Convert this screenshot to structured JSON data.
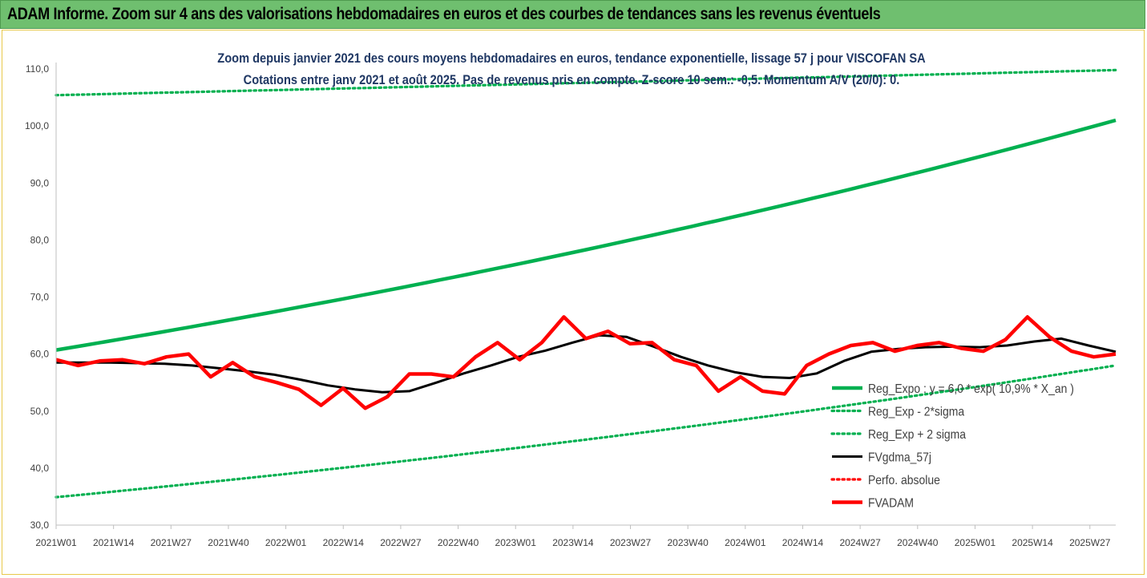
{
  "header": {
    "title": "ADAM Informe. Zoom sur 4 ans des valorisations hebdomadaires en euros et des courbes de tendances sans les revenus éventuels"
  },
  "colors": {
    "header_bg": "#6fbf6f",
    "green": "#00b050",
    "black": "#000000",
    "red": "#ff0000",
    "frame": "#e8c84a"
  },
  "chart_data": {
    "type": "line",
    "title": "Zoom depuis janvier 2021 des cours moyens hebdomadaires en euros, tendance exponentielle, lissage 57 j pour VISCOFAN SA",
    "subtitle": "Cotations entre janv 2021 et août 2025. Pas de revenus pris en compte. Z-score 10 sem.: -0,5. Momentum A/V (20/0): 0.",
    "xlabel": "",
    "ylabel": "",
    "ylim": [
      30,
      110
    ],
    "yticks": [
      "30,0",
      "40,0",
      "50,0",
      "60,0",
      "70,0",
      "80,0",
      "90,0",
      "100,0",
      "110,0"
    ],
    "xticks": [
      "2021W01",
      "2021W14",
      "2021W27",
      "2021W40",
      "2022W01",
      "2022W14",
      "2022W27",
      "2022W40",
      "2023W01",
      "2023W14",
      "2023W27",
      "2023W40",
      "2024W01",
      "2024W14",
      "2024W27",
      "2024W40",
      "2025W01",
      "2025W14",
      "2025W27"
    ],
    "legend_position": "bottom-right",
    "series": [
      {
        "name": "Reg_Expo : y = 6,0 * exp( 10,9% *  X_an )",
        "style": "solid-thick",
        "color": "#00b050",
        "start": 60.7,
        "end": 101.0
      },
      {
        "name": "Reg_Exp - 2*sigma",
        "style": "dotted",
        "color": "#00b050",
        "start": 34.9,
        "end": 58.0
      },
      {
        "name": "Reg_Exp + 2 sigma",
        "style": "dotted",
        "color": "#00b050",
        "start": 105.4,
        "end": 109.8
      },
      {
        "name": "FVgdma_57j",
        "style": "solid",
        "color": "#000000",
        "values": [
          58.5,
          58.5,
          58.5,
          58.4,
          58.3,
          58.0,
          57.5,
          57.0,
          56.4,
          55.5,
          54.5,
          53.8,
          53.3,
          53.5,
          55.0,
          56.6,
          58.0,
          59.5,
          60.6,
          62.0,
          63.3,
          63.0,
          61.3,
          59.5,
          58.0,
          56.8,
          56.0,
          55.8,
          56.6,
          58.8,
          60.4,
          60.9,
          61.2,
          61.3,
          61.2,
          61.5,
          62.2,
          62.7,
          61.5,
          60.4
        ]
      },
      {
        "name": "Perfo. absolue",
        "style": "dotted",
        "color": "#ff0000",
        "values": []
      },
      {
        "name": "FVADAM",
        "style": "solid-thick",
        "color": "#ff0000",
        "values": [
          59.0,
          58.0,
          58.8,
          59.0,
          58.3,
          59.5,
          60.0,
          56.0,
          58.5,
          56.0,
          55.0,
          53.8,
          51.0,
          54.0,
          50.5,
          52.5,
          56.5,
          56.5,
          56.0,
          59.5,
          62.0,
          59.0,
          62.0,
          66.5,
          62.7,
          64.0,
          61.8,
          62.0,
          59.0,
          58.0,
          53.5,
          56.0,
          53.5,
          53.0,
          58.0,
          60.0,
          61.5,
          62.0,
          60.5,
          61.5,
          62.0,
          61.0,
          60.5,
          62.5,
          66.5,
          63.0,
          60.5,
          59.5,
          60.0
        ]
      }
    ]
  }
}
